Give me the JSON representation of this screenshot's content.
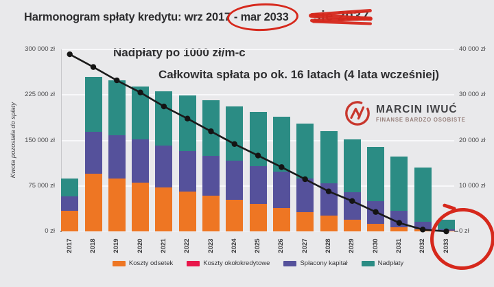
{
  "page": {
    "background": "#e9e9eb"
  },
  "title": {
    "prefix": "Harmonogram spłaty kredytu: wrz 2017",
    "circled": "- mar 2033",
    "struck": "sie 2037"
  },
  "annotations": {
    "line1": "Nadpłaty po 1000 zł/m-c",
    "line2": "Całkowita spłata po ok. 16 latach (4 lata wcześniej)",
    "annotation_color": "#d6281c"
  },
  "logo": {
    "name": "MARCIN IWUĆ",
    "tagline": "FINANSE BARDZO OSOBISTE",
    "mark_color": "#c8372d"
  },
  "chart_data": {
    "type": "bar",
    "subtype": "stacked-bars-with-line",
    "title": "Harmonogram spłaty kredytu: wrz 2017 - mar 2033",
    "categories": [
      "2017",
      "2018",
      "2019",
      "2020",
      "2021",
      "2022",
      "2023",
      "2024",
      "2025",
      "2026",
      "2027",
      "2028",
      "2029",
      "2030",
      "2031",
      "2032",
      "2033"
    ],
    "series": [
      {
        "name": "Koszty odsetek",
        "color": "#EE7623",
        "values": [
          4500,
          12700,
          11700,
          10700,
          9700,
          8800,
          7800,
          7000,
          6000,
          5100,
          4300,
          3500,
          2500,
          1600,
          900,
          400,
          100
        ]
      },
      {
        "name": "Koszty okołokredytowe",
        "color": "#E8174B",
        "values": [
          0,
          0,
          0,
          0,
          0,
          0,
          0,
          0,
          0,
          0,
          0,
          0,
          0,
          0,
          0,
          0,
          0
        ]
      },
      {
        "name": "Spłacony kapitał",
        "color": "#55519B",
        "values": [
          3200,
          9200,
          9500,
          9500,
          9200,
          8900,
          8800,
          8600,
          8400,
          8100,
          7300,
          7000,
          6100,
          5000,
          3600,
          1700,
          400
        ]
      },
      {
        "name": "Nadpłaty",
        "color": "#2B8C84",
        "values": [
          3900,
          12000,
          12000,
          11700,
          11900,
          12200,
          12200,
          11800,
          11800,
          12000,
          12100,
          11500,
          11600,
          11900,
          11900,
          12000,
          2100
        ]
      }
    ],
    "line": {
      "name": "Kwota pozostała do spłaty",
      "color": "#1a1a1a",
      "axis": "left",
      "values": [
        292000,
        271000,
        249000,
        229000,
        206000,
        186000,
        165000,
        144000,
        125000,
        106000,
        86000,
        66000,
        50000,
        32000,
        14000,
        3000,
        0
      ]
    },
    "left_axis": {
      "label": "Kwota pozostała do spłaty",
      "ticks": [
        "0 zł",
        "75 000 zł",
        "150 000 zł",
        "225 000 zł",
        "300 000 zł"
      ],
      "max": 300000
    },
    "right_axis": {
      "ticks": [
        "0 zł",
        "10 000 zł",
        "20 000 zł",
        "30 000 zł",
        "40 000 zł"
      ],
      "max": 40000
    },
    "grid": true,
    "legend_position": "bottom"
  }
}
